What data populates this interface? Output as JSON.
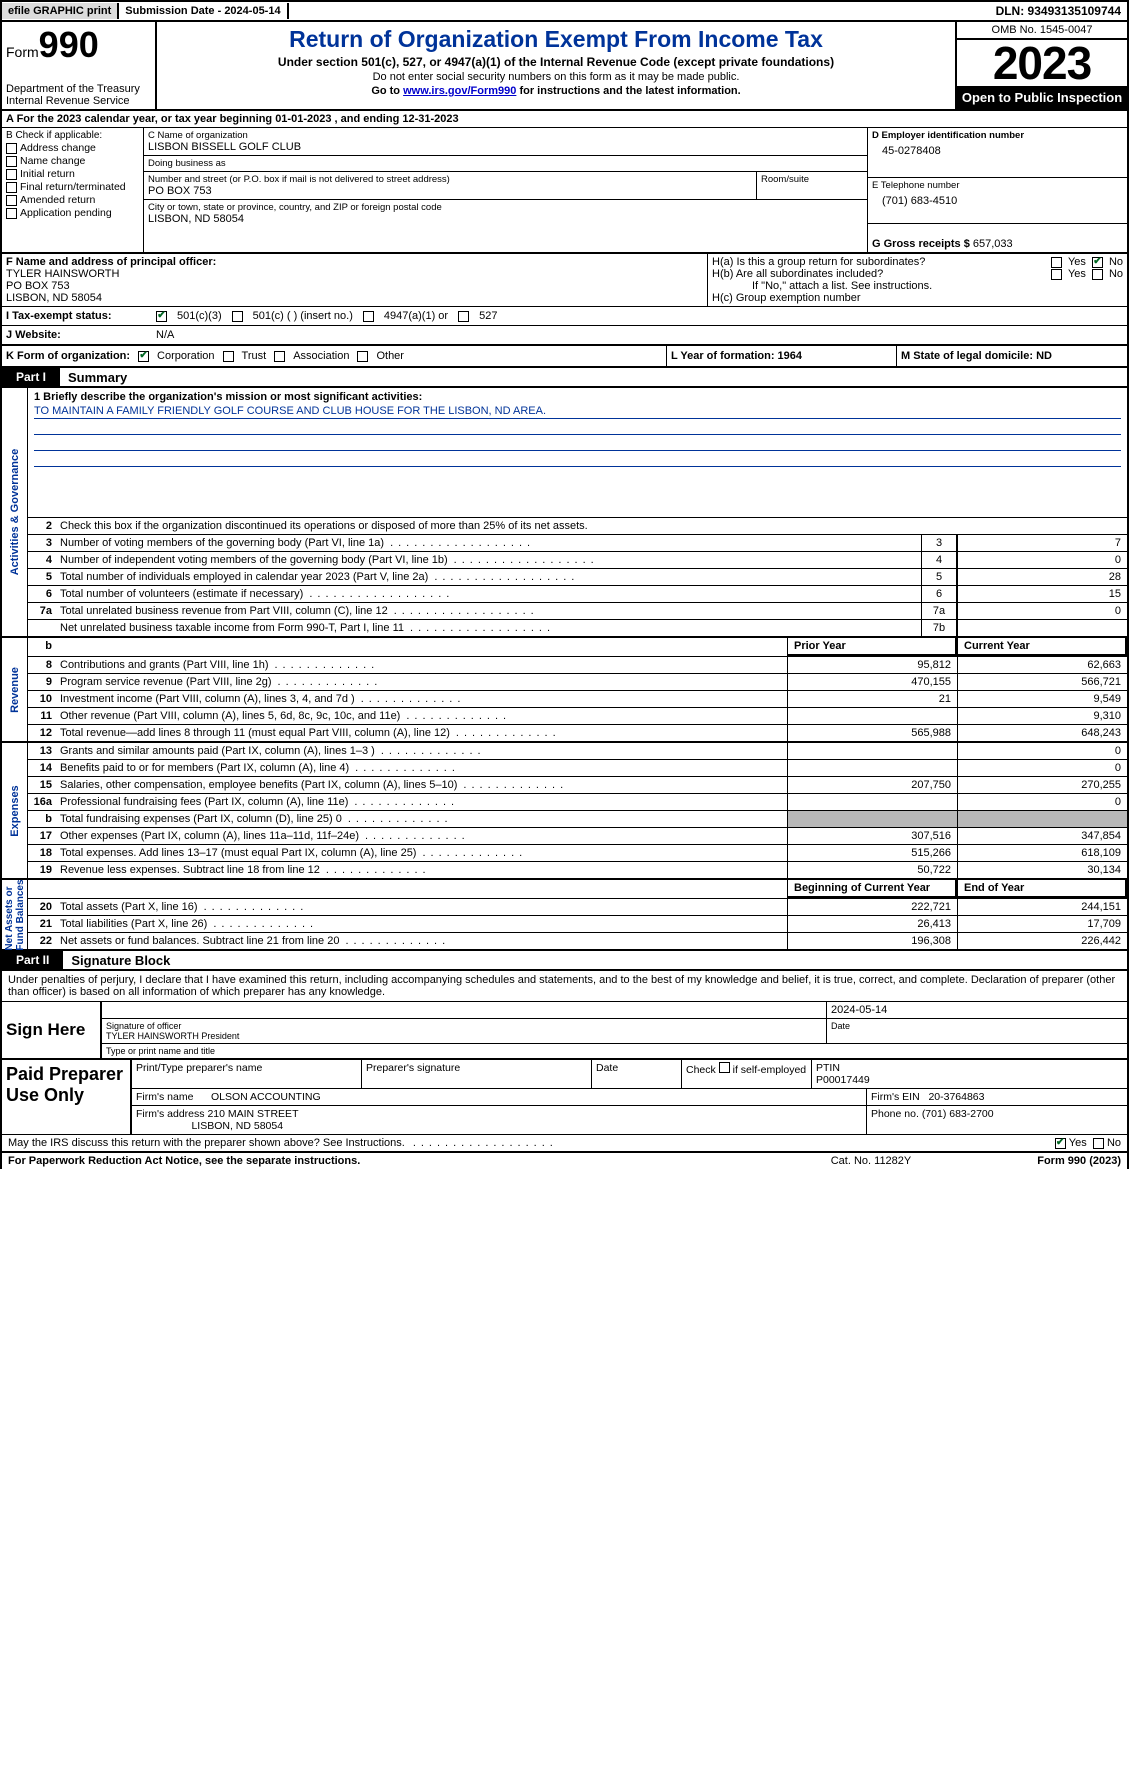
{
  "topbar": {
    "efile": "efile GRAPHIC print",
    "submission": "Submission Date - 2024-05-14",
    "dln": "DLN: 93493135109744"
  },
  "hdr": {
    "form_prefix": "Form",
    "form_no": "990",
    "title": "Return of Organization Exempt From Income Tax",
    "sub": "Under section 501(c), 527, or 4947(a)(1) of the Internal Revenue Code (except private foundations)",
    "note1": "Do not enter social security numbers on this form as it may be made public.",
    "note2_pre": "Go to ",
    "note2_link": "www.irs.gov/Form990",
    "note2_post": " for instructions and the latest information.",
    "dept": "Department of the Treasury\nInternal Revenue Service",
    "omb": "OMB No. 1545-0047",
    "year": "2023",
    "open": "Open to Public Inspection"
  },
  "rowA": "A For the 2023 calendar year, or tax year beginning 01-01-2023    , and ending 12-31-2023",
  "B": {
    "label": "B Check if applicable:",
    "items": [
      "Address change",
      "Name change",
      "Initial return",
      "Final return/terminated",
      "Amended return",
      "Application pending"
    ]
  },
  "C": {
    "name_lbl": "C Name of organization",
    "name": "LISBON BISSELL GOLF CLUB",
    "dba_lbl": "Doing business as",
    "dba": "",
    "addr_lbl": "Number and street (or P.O. box if mail is not delivered to street address)",
    "room_lbl": "Room/suite",
    "addr": "PO BOX 753",
    "city_lbl": "City or town, state or province, country, and ZIP or foreign postal code",
    "city": "LISBON, ND  58054"
  },
  "D": {
    "ein_lbl": "D Employer identification number",
    "ein": "45-0278408",
    "tel_lbl": "E Telephone number",
    "tel": "(701) 683-4510",
    "gross_lbl": "G Gross receipts $",
    "gross": "657,033"
  },
  "F": {
    "lbl": "F  Name and address of principal officer:",
    "l1": "TYLER HAINSWORTH",
    "l2": "PO BOX 753",
    "l3": "LISBON, ND  58054"
  },
  "H": {
    "a": "H(a)  Is this a group return for subordinates?",
    "a_yes": "Yes",
    "a_no": "No",
    "b": "H(b)  Are all subordinates included?",
    "b_yes": "Yes",
    "b_no": "No",
    "b_note": "If \"No,\" attach a list. See instructions.",
    "c": "H(c)  Group exemption number"
  },
  "I": {
    "lbl": "I   Tax-exempt status:",
    "o1": "501(c)(3)",
    "o2": "501(c) (  ) (insert no.)",
    "o3": "4947(a)(1) or",
    "o4": "527"
  },
  "J": {
    "lbl": "J   Website:",
    "val": "N/A"
  },
  "K": {
    "lbl": "K Form of organization:",
    "o1": "Corporation",
    "o2": "Trust",
    "o3": "Association",
    "o4": "Other"
  },
  "L": "L Year of formation: 1964",
  "M": "M State of legal domicile: ND",
  "part1": {
    "tab": "Part I",
    "name": "Summary"
  },
  "q1_lbl": "1   Briefly describe the organization's mission or most significant activities:",
  "q1_val": "TO MAINTAIN A FAMILY FRIENDLY GOLF COURSE AND CLUB HOUSE FOR THE LISBON, ND AREA.",
  "q2": "Check this box        if the organization discontinued its operations or disposed of more than 25% of its net assets.",
  "gov_rows": [
    {
      "n": "3",
      "d": "Number of voting members of the governing body (Part VI, line 1a)",
      "k": "3",
      "v": "7"
    },
    {
      "n": "4",
      "d": "Number of independent voting members of the governing body (Part VI, line 1b)",
      "k": "4",
      "v": "0"
    },
    {
      "n": "5",
      "d": "Total number of individuals employed in calendar year 2023 (Part V, line 2a)",
      "k": "5",
      "v": "28"
    },
    {
      "n": "6",
      "d": "Total number of volunteers (estimate if necessary)",
      "k": "6",
      "v": "15"
    },
    {
      "n": "7a",
      "d": "Total unrelated business revenue from Part VIII, column (C), line 12",
      "k": "7a",
      "v": "0"
    },
    {
      "n": "",
      "d": "Net unrelated business taxable income from Form 990-T, Part I, line 11",
      "k": "7b",
      "v": ""
    }
  ],
  "rev_hdr": {
    "b": "b",
    "p": "Prior Year",
    "c": "Current Year"
  },
  "rev_rows": [
    {
      "n": "8",
      "d": "Contributions and grants (Part VIII, line 1h)",
      "p": "95,812",
      "c": "62,663"
    },
    {
      "n": "9",
      "d": "Program service revenue (Part VIII, line 2g)",
      "p": "470,155",
      "c": "566,721"
    },
    {
      "n": "10",
      "d": "Investment income (Part VIII, column (A), lines 3, 4, and 7d )",
      "p": "21",
      "c": "9,549"
    },
    {
      "n": "11",
      "d": "Other revenue (Part VIII, column (A), lines 5, 6d, 8c, 9c, 10c, and 11e)",
      "p": "",
      "c": "9,310"
    },
    {
      "n": "12",
      "d": "Total revenue—add lines 8 through 11 (must equal Part VIII, column (A), line 12)",
      "p": "565,988",
      "c": "648,243"
    }
  ],
  "exp_rows": [
    {
      "n": "13",
      "d": "Grants and similar amounts paid (Part IX, column (A), lines 1–3 )",
      "p": "",
      "c": "0"
    },
    {
      "n": "14",
      "d": "Benefits paid to or for members (Part IX, column (A), line 4)",
      "p": "",
      "c": "0"
    },
    {
      "n": "15",
      "d": "Salaries, other compensation, employee benefits (Part IX, column (A), lines 5–10)",
      "p": "207,750",
      "c": "270,255"
    },
    {
      "n": "16a",
      "d": "Professional fundraising fees (Part IX, column (A), line 11e)",
      "p": "",
      "c": "0"
    },
    {
      "n": "b",
      "d": "Total fundraising expenses (Part IX, column (D), line 25) 0",
      "p": "SHADE",
      "c": "SHADE"
    },
    {
      "n": "17",
      "d": "Other expenses (Part IX, column (A), lines 11a–11d, 11f–24e)",
      "p": "307,516",
      "c": "347,854"
    },
    {
      "n": "18",
      "d": "Total expenses. Add lines 13–17 (must equal Part IX, column (A), line 25)",
      "p": "515,266",
      "c": "618,109"
    },
    {
      "n": "19",
      "d": "Revenue less expenses. Subtract line 18 from line 12",
      "p": "50,722",
      "c": "30,134"
    }
  ],
  "na_hdr": {
    "p": "Beginning of Current Year",
    "c": "End of Year"
  },
  "na_rows": [
    {
      "n": "20",
      "d": "Total assets (Part X, line 16)",
      "p": "222,721",
      "c": "244,151"
    },
    {
      "n": "21",
      "d": "Total liabilities (Part X, line 26)",
      "p": "26,413",
      "c": "17,709"
    },
    {
      "n": "22",
      "d": "Net assets or fund balances. Subtract line 21 from line 20",
      "p": "196,308",
      "c": "226,442"
    }
  ],
  "part2": {
    "tab": "Part II",
    "name": "Signature Block"
  },
  "sig": {
    "pen": "Under penalties of perjury, I declare that I have examined this return, including accompanying schedules and statements, and to the best of my knowledge and belief, it is true, correct, and complete. Declaration of preparer (other than officer) is based on all information of which preparer has any knowledge.",
    "sign_here": "Sign Here",
    "date": "2024-05-14",
    "sig_lbl": "Signature of officer",
    "date_lbl": "Date",
    "name": "TYLER HAINSWORTH  President",
    "name_lbl": "Type or print name and title"
  },
  "prep": {
    "lbl": "Paid Preparer Use Only",
    "h1": "Print/Type preparer's name",
    "h2": "Preparer's signature",
    "h3": "Date",
    "h4_pre": "Check",
    "h4_post": "if self-employed",
    "h5": "PTIN",
    "ptin": "P00017449",
    "firm_lbl": "Firm's name",
    "firm": "OLSON ACCOUNTING",
    "ein_lbl": "Firm's EIN",
    "ein": "20-3764863",
    "addr_lbl": "Firm's address",
    "addr1": "210 MAIN STREET",
    "addr2": "LISBON, ND  58054",
    "phone_lbl": "Phone no.",
    "phone": "(701) 683-2700"
  },
  "irsq": {
    "q": "May the IRS discuss this return with the preparer shown above? See Instructions.",
    "yes": "Yes",
    "no": "No"
  },
  "foot": {
    "l": "For Paperwork Reduction Act Notice, see the separate instructions.",
    "c": "Cat. No. 11282Y",
    "r_pre": "Form ",
    "r_b": "990",
    "r_post": " (2023)"
  }
}
